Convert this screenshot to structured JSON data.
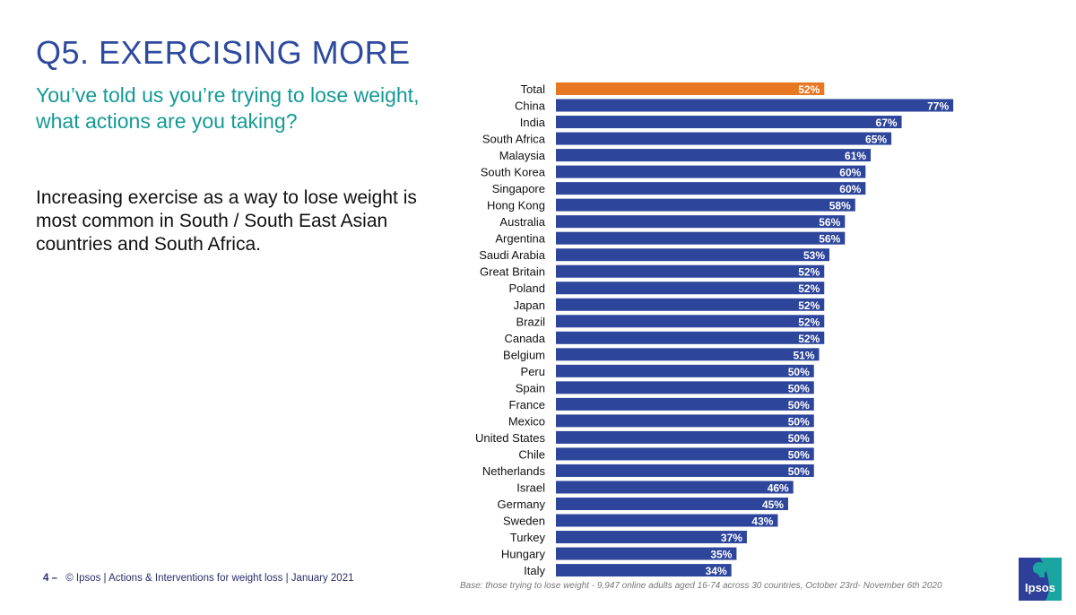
{
  "header": {
    "title": "Q5. EXERCISING MORE",
    "subtitle": "You’ve told us you’re trying to lose weight, what actions are you taking?",
    "body": "Increasing exercise as a way to lose weight is most common in South / South East Asian countries and South Africa."
  },
  "footer": {
    "page_number": "4 –",
    "text": "© Ipsos | Actions & Interventions for weight loss | January 2021"
  },
  "base_note": "Base: those trying to lose weight - 9,947 online adults aged 16-74 across 30 countries, October 23rd- November 6th 2020",
  "logo": {
    "text": "Ipsos",
    "icon": "ipsos-logo-icon"
  },
  "colors": {
    "title": "#2e4a9e",
    "subtitle": "#139a96",
    "bar_default": "#2e459c",
    "bar_highlight": "#e87722"
  },
  "chart_data": {
    "type": "bar",
    "orientation": "horizontal",
    "title": "",
    "xlabel": "",
    "ylabel": "",
    "xlim": [
      0,
      100
    ],
    "grid": false,
    "unit": "%",
    "categories": [
      "Total",
      "China",
      "India",
      "South Africa",
      "Malaysia",
      "South Korea",
      "Singapore",
      "Hong Kong",
      "Australia",
      "Argentina",
      "Saudi Arabia",
      "Great Britain",
      "Poland",
      "Japan",
      "Brazil",
      "Canada",
      "Belgium",
      "Peru",
      "Spain",
      "France",
      "Mexico",
      "United States",
      "Chile",
      "Netherlands",
      "Israel",
      "Germany",
      "Sweden",
      "Turkey",
      "Hungary",
      "Italy"
    ],
    "values": [
      52,
      77,
      67,
      65,
      61,
      60,
      60,
      58,
      56,
      56,
      53,
      52,
      52,
      52,
      52,
      52,
      51,
      50,
      50,
      50,
      50,
      50,
      50,
      50,
      46,
      45,
      43,
      37,
      35,
      34
    ],
    "value_labels": [
      "52%",
      "77%",
      "67%",
      "65%",
      "61%",
      "60%",
      "60%",
      "58%",
      "56%",
      "56%",
      "53%",
      "52%",
      "52%",
      "52%",
      "52%",
      "52%",
      "51%",
      "50%",
      "50%",
      "50%",
      "50%",
      "50%",
      "50%",
      "50%",
      "46%",
      "45%",
      "43%",
      "37%",
      "35%",
      "34%"
    ],
    "highlight": [
      "Total"
    ]
  }
}
